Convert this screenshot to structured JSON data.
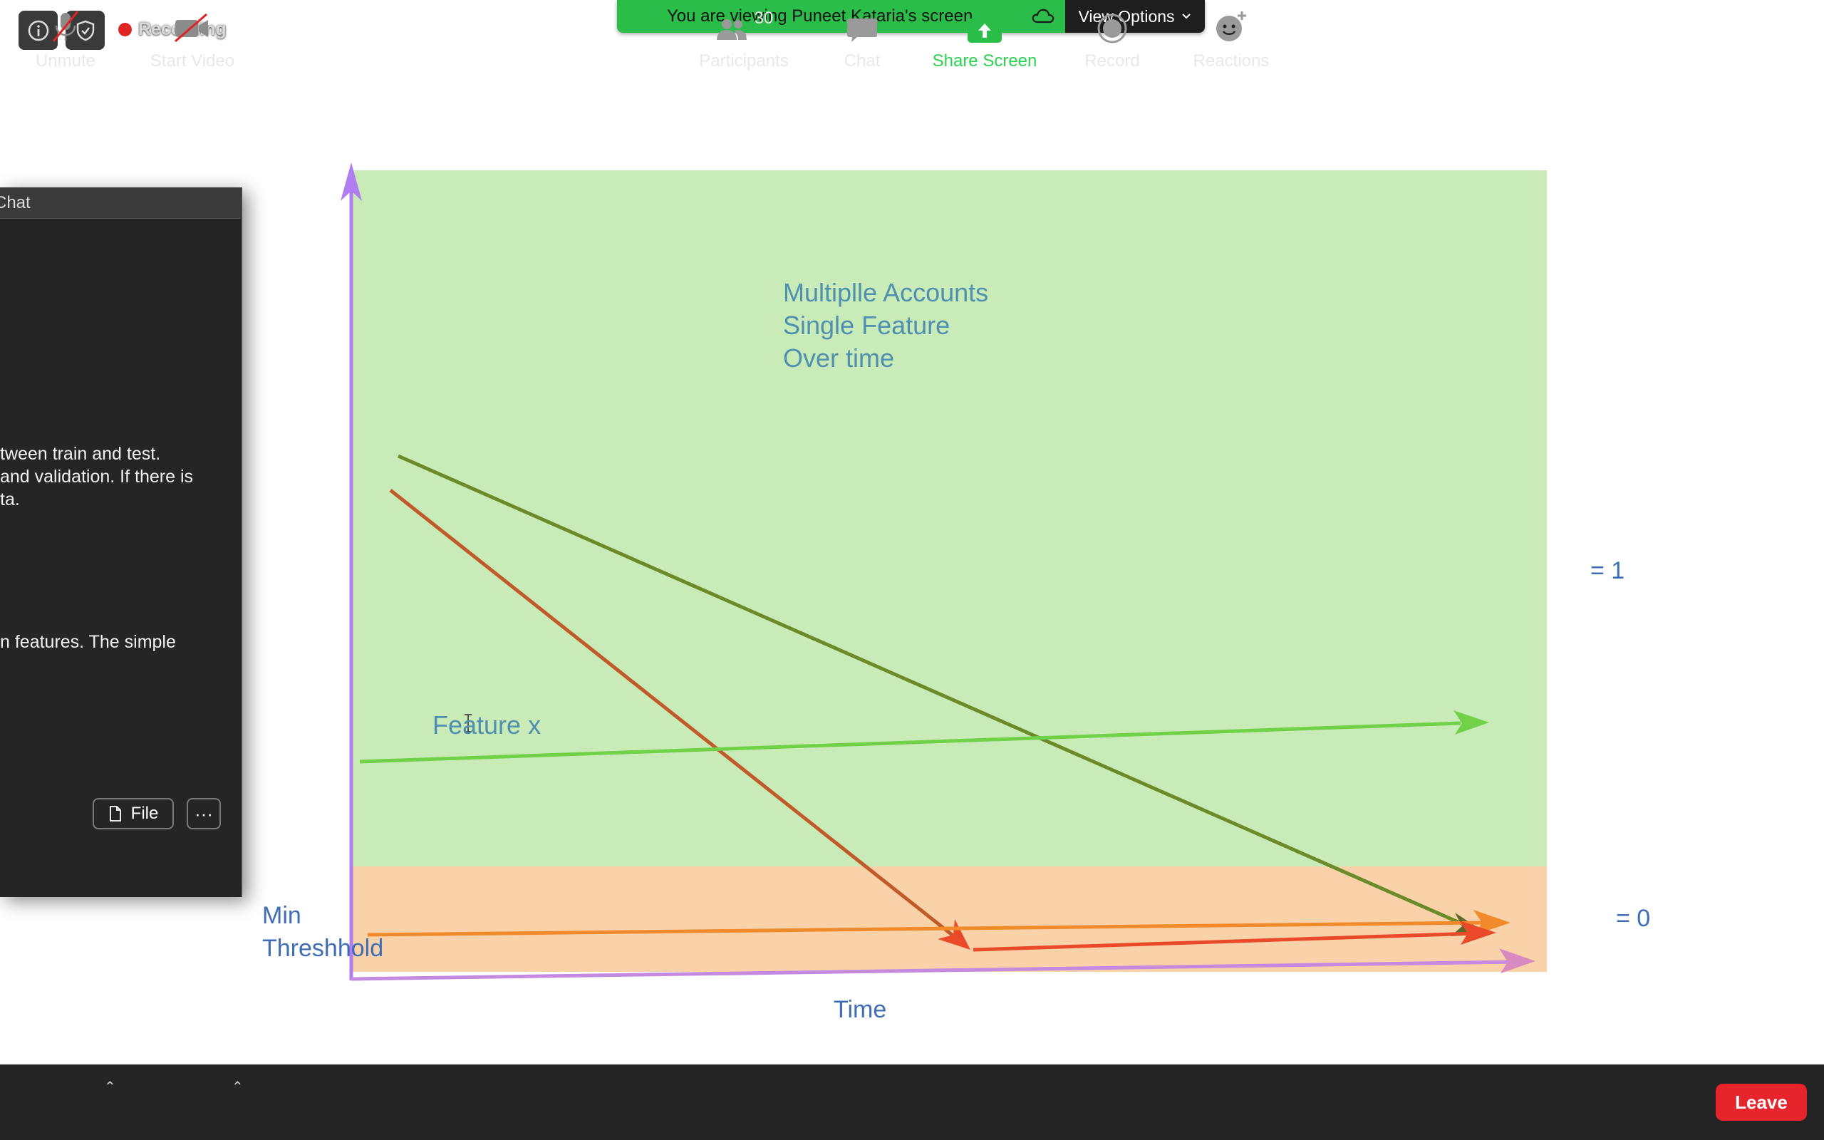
{
  "top_bar": {
    "recording_label": "Recording",
    "share_banner_text": "You are viewing Puneet Kataria's screen",
    "view_options_label": "View Options"
  },
  "slide": {
    "title_lines": [
      "Multiplle Accounts",
      "Single Feature",
      "Over time"
    ],
    "feature_label": "Feature x",
    "min_threshold_lines": [
      "Min",
      "Threshhold"
    ],
    "x_axis_label": "Time",
    "level_one_label": "= 1",
    "level_zero_label": "= 0",
    "colors": {
      "green_region": "#c9ebb7",
      "orange_region": "#f9d2a9",
      "axis": "#b07ef0",
      "olive_line": "#6b8a2a",
      "brown_red_line": "#c05a2a",
      "light_green_line": "#71d24a",
      "orange_line": "#f08a2a",
      "red_line": "#ea4a2a",
      "bottom_axis_arrow": "#d98ac0"
    }
  },
  "chat": {
    "title": "Chat",
    "message_1": [
      "tween train and test.",
      "and validation. If there is",
      "ta."
    ],
    "message_2": [
      "n features. The simple"
    ],
    "file_button": "File",
    "more_button": "···"
  },
  "toolbar": {
    "unmute_label": "Unmute",
    "start_video_label": "Start Video",
    "participants_label": "Participants",
    "participants_count": "30",
    "chat_label": "Chat",
    "share_screen_label": "Share Screen",
    "record_label": "Record",
    "reactions_label": "Reactions",
    "leave_label": "Leave",
    "share_color": "#2bbd49",
    "leave_color": "#e5242b"
  }
}
